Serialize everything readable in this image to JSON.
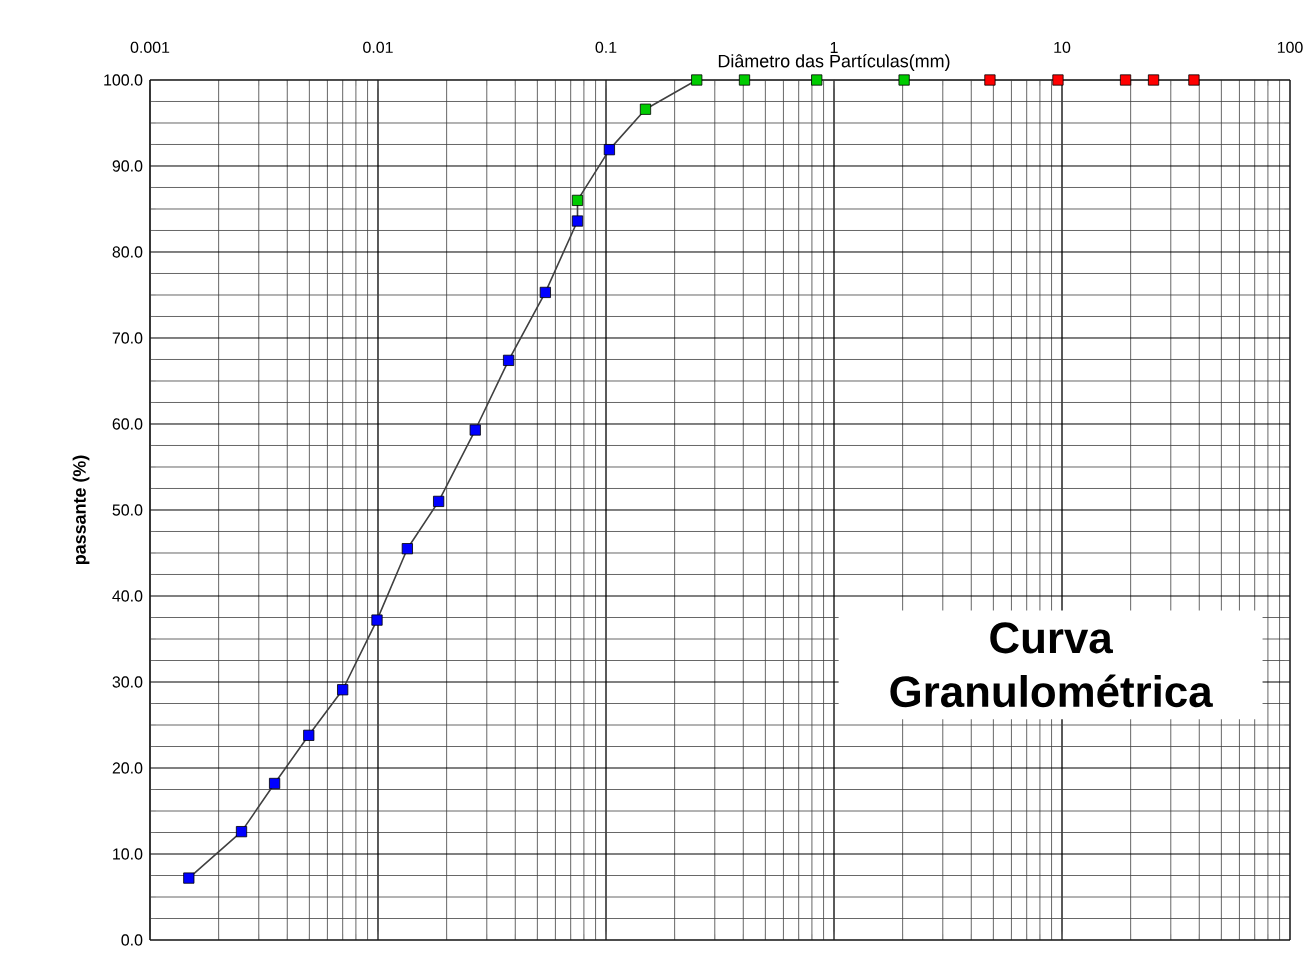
{
  "chart_data": {
    "type": "scatter",
    "xlabel": "Diâmetro das Partículas(mm)",
    "ylabel": "passante (%)",
    "annotations": [
      "Curva Granulométrica"
    ],
    "log": "x",
    "grid": true,
    "marker": "square",
    "xlim": [
      0.001,
      100
    ],
    "xticks": [
      0.001,
      0.01,
      0.1,
      1,
      10,
      100
    ],
    "ylim": [
      0,
      100
    ],
    "yticks": [
      {
        "value": 0,
        "label": "0.0"
      },
      {
        "value": 10,
        "label": "10.0"
      },
      {
        "value": 20,
        "label": "20.0"
      },
      {
        "value": 30,
        "label": "30.0"
      },
      {
        "value": 40,
        "label": "40.0"
      },
      {
        "value": 50,
        "label": "50.0"
      },
      {
        "value": 60,
        "label": "60.0"
      },
      {
        "value": 70,
        "label": "70.0"
      },
      {
        "value": 80,
        "label": "80.0"
      },
      {
        "value": 90,
        "label": "90.0"
      },
      {
        "value": 100,
        "label": "100.0"
      }
    ],
    "series": [
      {
        "type": "line",
        "marker": "none",
        "color": "#404040",
        "x": [
          0.00148,
          0.00252,
          0.00352,
          0.00497,
          0.007,
          0.0099,
          0.01345,
          0.01845,
          0.0267,
          0.0374,
          0.0542,
          0.075,
          0.075,
          0.1035,
          0.149,
          0.25,
          0.405,
          0.84,
          2.03,
          4.83,
          9.6,
          19.0,
          25.2,
          37.9
        ],
        "values": [
          7.2,
          12.6,
          18.2,
          23.8,
          29.1,
          37.2,
          45.5,
          51.0,
          59.3,
          67.4,
          75.3,
          83.6,
          86.0,
          91.9,
          96.6,
          100,
          100,
          100,
          100,
          100,
          100,
          100,
          100,
          100
        ]
      },
      {
        "color": "#0000ff",
        "x": [
          0.00148,
          0.00252,
          0.00352,
          0.00497,
          0.007,
          0.0099,
          0.01345,
          0.01845,
          0.0267,
          0.0374,
          0.0542,
          0.075,
          0.1035
        ],
        "values": [
          7.2,
          12.6,
          18.2,
          23.8,
          29.1,
          37.2,
          45.5,
          51.0,
          59.3,
          67.4,
          75.3,
          83.6,
          91.9
        ]
      },
      {
        "color": "#00cc00",
        "x": [
          0.075,
          0.149,
          0.25,
          0.405,
          0.84,
          2.03
        ],
        "values": [
          86.0,
          96.6,
          100,
          100,
          100,
          100
        ]
      },
      {
        "color": "#ff0000",
        "x": [
          4.83,
          9.6,
          19.0,
          25.2,
          37.9
        ],
        "values": [
          100,
          100,
          100,
          100,
          100
        ]
      }
    ]
  }
}
